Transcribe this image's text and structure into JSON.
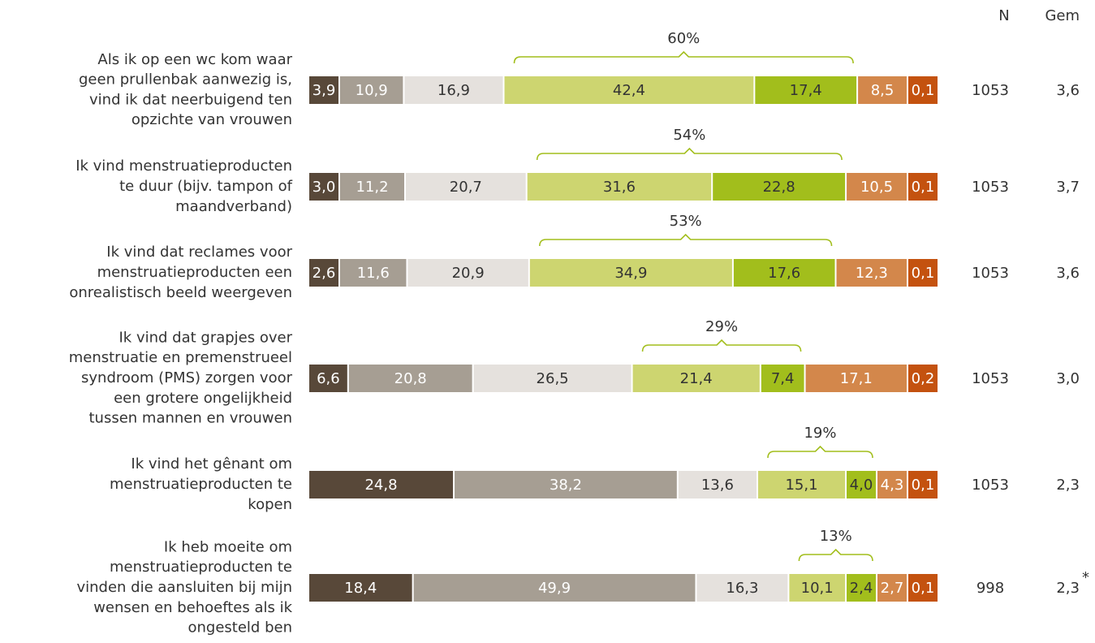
{
  "chart_data": {
    "type": "stacked-bar-horizontal",
    "categories": [
      [
        "Als ik op een wc kom waar",
        "geen prullenbak aanwezig is,",
        "vind ik dat neerbuigend ten",
        "opzichte van vrouwen"
      ],
      [
        "Ik vind menstruatieproducten",
        "te duur (bijv. tampon of",
        "maandverband)"
      ],
      [
        "Ik vind dat reclames voor",
        "menstruatieproducten een",
        "onrealistisch beeld weergeven"
      ],
      [
        "Ik vind dat grapjes over",
        "menstruatie en premenstrueel",
        "syndroom (PMS) zorgen voor",
        "een grotere ongelijkheid",
        "tussen mannen en vrouwen"
      ],
      [
        "Ik vind het gênant om",
        "menstruatieproducten te",
        "kopen"
      ],
      [
        "Ik heb moeite om",
        "menstruatieproducten te",
        "vinden die aansluiten bij mijn",
        "wensen en behoeftes als ik",
        "ongesteld ben"
      ]
    ],
    "series": [
      {
        "color": "#584839",
        "values": [
          3.9,
          3.0,
          2.6,
          6.6,
          24.8,
          18.4
        ],
        "value_labels": [
          "3,9",
          "3,0",
          "2,6",
          "6,6",
          "24,8",
          "18,4"
        ]
      },
      {
        "color": "#a69e93",
        "values": [
          10.9,
          11.2,
          11.6,
          20.8,
          38.2,
          49.9
        ],
        "value_labels": [
          "10,9",
          "11,2",
          "11,6",
          "20,8",
          "38,2",
          "49,9"
        ]
      },
      {
        "color": "#e5e1dd",
        "values": [
          16.9,
          20.7,
          20.9,
          26.5,
          13.6,
          16.3
        ],
        "value_labels": [
          "16,9",
          "20,7",
          "20,9",
          "26,5",
          "13,6",
          "16,3"
        ]
      },
      {
        "color": "#cdd570",
        "values": [
          42.4,
          31.6,
          34.9,
          21.4,
          15.1,
          10.1
        ],
        "value_labels": [
          "42,4",
          "31,6",
          "34,9",
          "21,4",
          "15,1",
          "10,1"
        ]
      },
      {
        "color": "#a2be1c",
        "values": [
          17.4,
          22.8,
          17.6,
          7.4,
          4.0,
          2.4
        ],
        "value_labels": [
          "17,4",
          "22,8",
          "17,6",
          "7,4",
          "4,0",
          "2,4"
        ]
      },
      {
        "color": "#d3874b",
        "values": [
          8.5,
          10.5,
          12.3,
          17.1,
          4.3,
          2.7
        ],
        "value_labels": [
          "8,5",
          "10,5",
          "12,3",
          "17,1",
          "4,3",
          "2,7"
        ]
      },
      {
        "color": "#c4520f",
        "values": [
          0.1,
          0.1,
          0.1,
          0.2,
          0.1,
          0.1
        ],
        "value_labels": [
          "0,1",
          "0,1",
          "0,1",
          "0,2",
          "0,1",
          "0,1"
        ]
      }
    ],
    "agree": {
      "color": "#a2be1c",
      "values": [
        60,
        54,
        53,
        29,
        19,
        13
      ],
      "value_labels": [
        "60%",
        "54%",
        "53%",
        "29%",
        "19%",
        "13%"
      ]
    },
    "n_header": "N",
    "n_values": [
      1053,
      1053,
      1053,
      1053,
      1053,
      998
    ],
    "gem_header": "Gem",
    "gem_values": [
      3.6,
      3.7,
      3.6,
      3.0,
      2.3,
      2.3
    ],
    "gem_value_labels": [
      "3,6",
      "3,7",
      "3,6",
      "3,0",
      "2,3",
      "2,3"
    ],
    "gem_markers": [
      null,
      null,
      null,
      null,
      null,
      "*"
    ]
  }
}
